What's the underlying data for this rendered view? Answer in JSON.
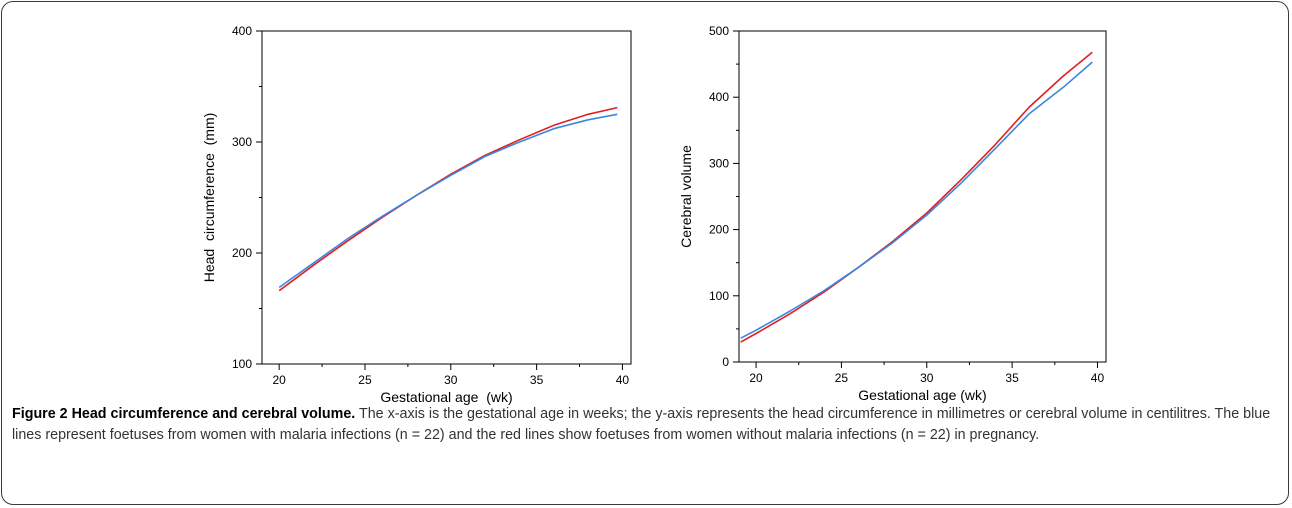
{
  "figure": {
    "caption_title": "Figure 2 Head circumference and cerebral volume.",
    "caption_text": " The x-axis is the gestational age in weeks; the y-axis represents the head circumference in millimetres or cerebral volume in centilitres. The blue lines represent foetuses from women with malaria infections (n = 22) and the red lines show foetuses from women without malaria infections (n = 22) in pregnancy."
  },
  "colors": {
    "malaria": "#3a86e0",
    "no_malaria": "#e02020",
    "axis": "#000000"
  },
  "chart_data": [
    {
      "type": "line",
      "xlabel": "Gestational age  (wk)",
      "ylabel": "Head  circumference  (mm)",
      "xlim": [
        19,
        40.5
      ],
      "ylim": [
        100,
        400
      ],
      "xticks": [
        20,
        25,
        30,
        35,
        40
      ],
      "yticks": [
        100,
        200,
        300,
        400
      ],
      "x": [
        20,
        22,
        24,
        26,
        28,
        30,
        32,
        34,
        36,
        38,
        39.7
      ],
      "series": [
        {
          "color": "red",
          "values": [
            166,
            189,
            211,
            232,
            252,
            271,
            288,
            302,
            315,
            325,
            331
          ]
        },
        {
          "color": "blue",
          "values": [
            169,
            191,
            213,
            233,
            252,
            270,
            287,
            300,
            312,
            320,
            325
          ]
        }
      ]
    },
    {
      "type": "line",
      "xlabel": "Gestational age (wk)",
      "ylabel": "Cerebral volume",
      "xlim": [
        19,
        40.5
      ],
      "ylim": [
        0,
        500
      ],
      "xticks": [
        20,
        25,
        30,
        35,
        40
      ],
      "yticks": [
        0,
        100,
        200,
        300,
        400,
        500
      ],
      "x": [
        19.1,
        20,
        22,
        24,
        26,
        28,
        30,
        32,
        34,
        36,
        38,
        39.7
      ],
      "series": [
        {
          "color": "red",
          "values": [
            30,
            43,
            73,
            106,
            143,
            182,
            225,
            275,
            328,
            385,
            432,
            468
          ]
        },
        {
          "color": "blue",
          "values": [
            36,
            48,
            77,
            108,
            143,
            180,
            222,
            270,
            322,
            375,
            415,
            453
          ]
        }
      ]
    }
  ]
}
